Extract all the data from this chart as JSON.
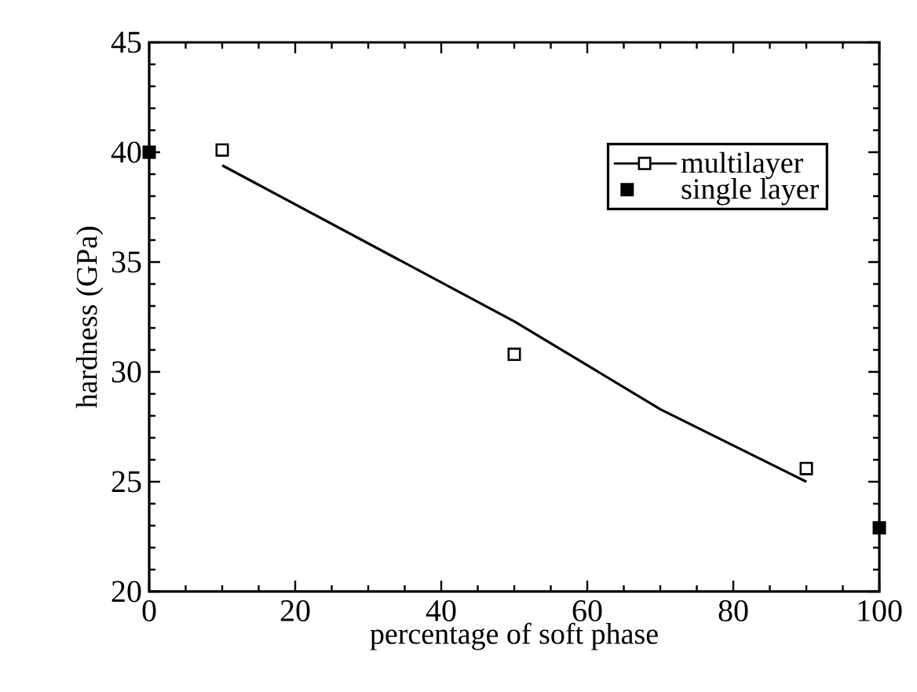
{
  "chart_data": {
    "type": "scatter",
    "xlabel": "percentage of soft phase",
    "ylabel": "hardness (GPa)",
    "xlim": [
      0,
      100
    ],
    "ylim": [
      20,
      45
    ],
    "xticks": [
      0,
      20,
      40,
      60,
      80,
      100
    ],
    "yticks": [
      20,
      25,
      30,
      35,
      40,
      45
    ],
    "grid": false,
    "legend": "top right",
    "marker": "square",
    "series": [
      {
        "name": "multilayer",
        "color": "#000000",
        "x": [
          10,
          50,
          90
        ],
        "values": [
          40.1,
          30.8,
          25.6
        ]
      },
      {
        "type": "line",
        "color": "#000000",
        "marker": "none",
        "x": [
          10,
          50,
          70,
          90
        ],
        "values": [
          39.4,
          32.3,
          28.3,
          25.0
        ]
      },
      {
        "name": "single layer",
        "color": "#000000",
        "x": [
          0,
          100
        ],
        "values": [
          40.0,
          22.9
        ]
      }
    ]
  }
}
